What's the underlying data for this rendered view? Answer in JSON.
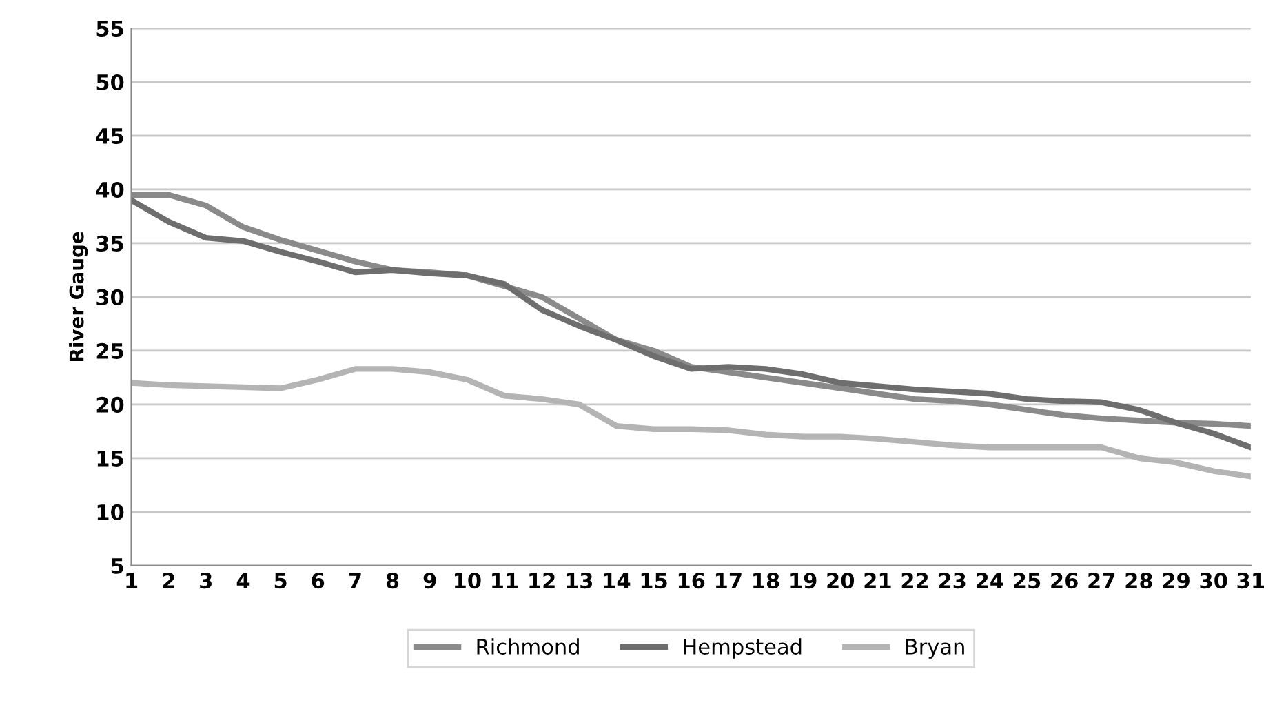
{
  "chart_data": {
    "type": "line",
    "ylabel": "River Gauge",
    "categories": [
      "1",
      "2",
      "3",
      "4",
      "5",
      "6",
      "7",
      "8",
      "9",
      "10",
      "11",
      "12",
      "13",
      "14",
      "15",
      "16",
      "17",
      "18",
      "19",
      "20",
      "21",
      "22",
      "23",
      "24",
      "25",
      "26",
      "27",
      "28",
      "29",
      "30",
      "31"
    ],
    "series": [
      {
        "name": "Richmond",
        "color": "#8a8a8a",
        "values": [
          39.5,
          39.5,
          38.5,
          36.5,
          35.3,
          34.3,
          33.3,
          32.5,
          32.3,
          32,
          31,
          30,
          28,
          26,
          25,
          23.5,
          23,
          22.5,
          22,
          21.5,
          21,
          20.5,
          20.3,
          20,
          19.5,
          19,
          18.7,
          18.5,
          18.3,
          18.2,
          18
        ]
      },
      {
        "name": "Hempstead",
        "color": "#6e6e6e",
        "values": [
          39,
          37,
          35.5,
          35.2,
          34.2,
          33.3,
          32.3,
          32.5,
          32.2,
          32,
          31.2,
          28.8,
          27.3,
          26,
          24.5,
          23.3,
          23.5,
          23.3,
          22.8,
          22,
          21.7,
          21.4,
          21.2,
          21,
          20.5,
          20.3,
          20.2,
          19.5,
          18.3,
          17.3,
          16
        ]
      },
      {
        "name": "Bryan",
        "color": "#b4b4b4",
        "values": [
          22,
          21.8,
          21.7,
          21.6,
          21.5,
          22.3,
          23.3,
          23.3,
          23,
          22.3,
          20.8,
          20.5,
          20,
          18,
          17.7,
          17.7,
          17.6,
          17.2,
          17,
          17,
          16.8,
          16.5,
          16.2,
          16,
          16,
          16,
          16,
          15,
          14.6,
          13.8,
          13.3
        ]
      }
    ],
    "ylim": [
      5,
      55
    ],
    "yticks": [
      5,
      10,
      15,
      20,
      25,
      30,
      35,
      40,
      45,
      50,
      55
    ],
    "grid": "y",
    "legend": "bottom",
    "marker": "none",
    "line_style": "solid"
  }
}
